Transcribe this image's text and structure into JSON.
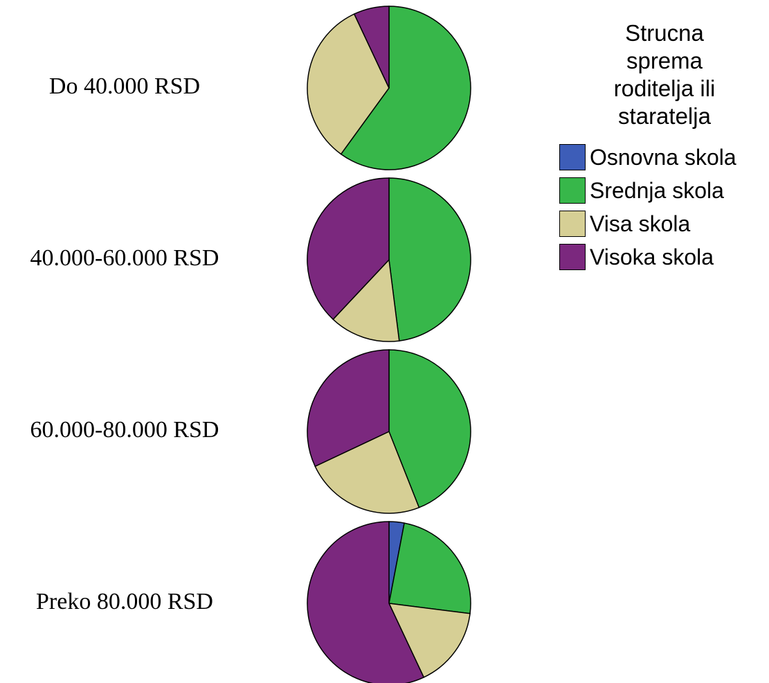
{
  "chart_data": {
    "type": "pie",
    "legend_title": "Strucna sprema roditelja ili staratelja",
    "categories": [
      "Do 40.000 RSD",
      "40.000-60.000 RSD",
      "60.000-80.000 RSD",
      "Preko 80.000 RSD"
    ],
    "series": [
      {
        "name": "Osnovna skola",
        "color": "#3d5db8",
        "values": [
          0,
          0,
          0,
          3
        ]
      },
      {
        "name": "Srednja skola",
        "color": "#37b74a",
        "values": [
          60,
          48,
          44,
          24
        ]
      },
      {
        "name": "Visa skola",
        "color": "#d6cf95",
        "values": [
          33,
          14,
          24,
          16
        ]
      },
      {
        "name": "Visoka skola",
        "color": "#7b287e",
        "values": [
          7,
          38,
          32,
          57
        ]
      }
    ]
  }
}
